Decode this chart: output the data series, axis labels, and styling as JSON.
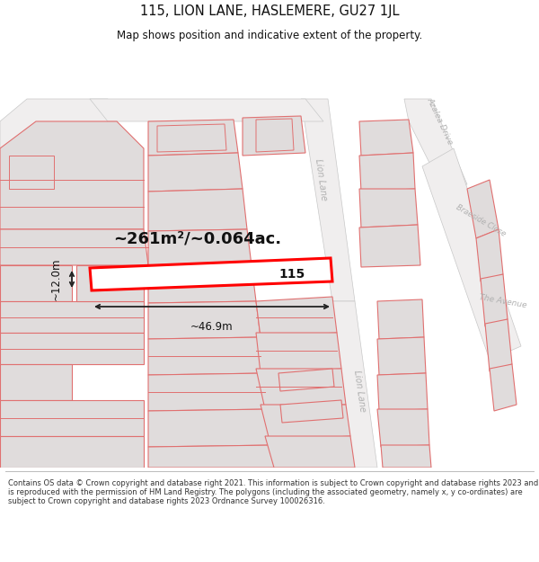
{
  "title_line1": "115, LION LANE, HASLEMERE, GU27 1JL",
  "title_line2": "Map shows position and indicative extent of the property.",
  "footer_text": "Contains OS data © Crown copyright and database right 2021. This information is subject to Crown copyright and database rights 2023 and is reproduced with the permission of HM Land Registry. The polygons (including the associated geometry, namely x, y co-ordinates) are subject to Crown copyright and database rights 2023 Ordnance Survey 100026316.",
  "area_label": "~261m²/~0.064ac.",
  "width_label": "~46.9m",
  "height_label": "~12.0m",
  "plot_number": "115",
  "map_bg": "#faf8f8",
  "parcel_fill": "#e0dcdc",
  "parcel_outline": "#e07070",
  "road_fill": "#f0eeee",
  "road_outline": "#c8c8c8",
  "plot_line_color": "#ff0000",
  "dim_color": "#222222",
  "title_color": "#111111",
  "road_label_color": "#b0b0b0",
  "footer_color": "#333333"
}
